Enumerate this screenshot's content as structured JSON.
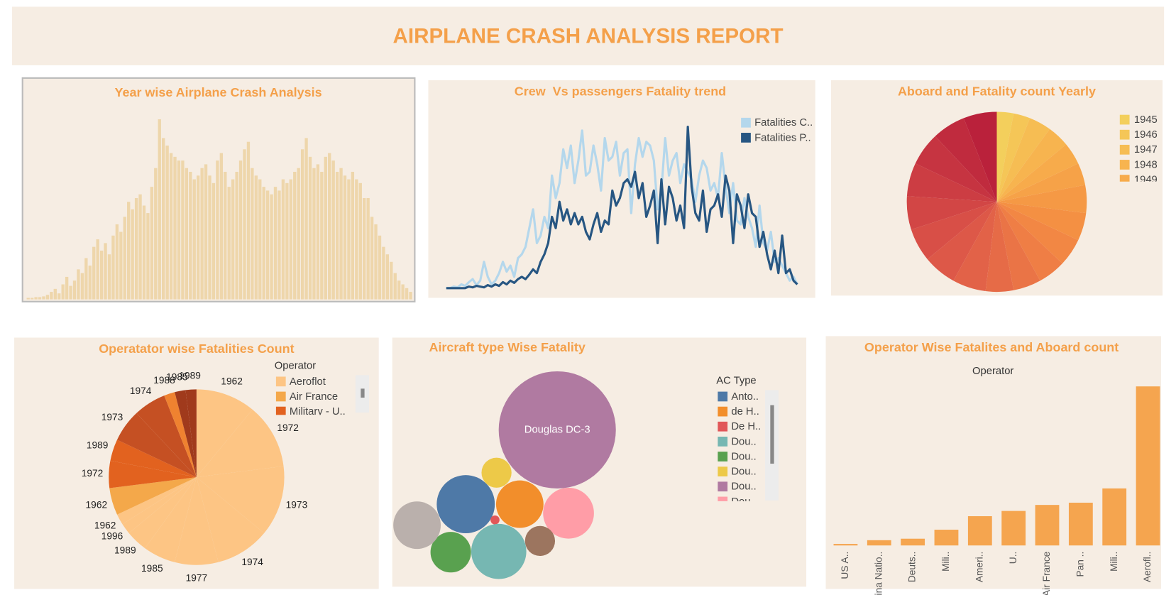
{
  "title": "AIRPLANE CRASH ANALYSIS REPORT",
  "chart_data": [
    {
      "type": "bar",
      "title": "Year wise Airplane Crash Analysis",
      "color": "#eed6ab",
      "values": [
        2,
        2,
        3,
        3,
        4,
        6,
        10,
        14,
        8,
        20,
        30,
        18,
        25,
        40,
        35,
        55,
        45,
        70,
        80,
        65,
        75,
        60,
        85,
        100,
        90,
        110,
        130,
        120,
        135,
        140,
        125,
        115,
        150,
        175,
        240,
        215,
        205,
        195,
        190,
        185,
        185,
        175,
        170,
        160,
        165,
        175,
        180,
        165,
        155,
        185,
        195,
        170,
        150,
        160,
        170,
        185,
        200,
        210,
        175,
        165,
        160,
        150,
        145,
        140,
        150,
        145,
        160,
        155,
        160,
        170,
        175,
        200,
        215,
        190,
        175,
        180,
        170,
        190,
        195,
        185,
        170,
        175,
        165,
        160,
        170,
        160,
        155,
        135,
        135,
        110,
        100,
        85,
        70,
        60,
        50,
        35,
        25,
        20,
        15,
        10
      ]
    },
    {
      "type": "line",
      "title": "Crew  Vs passengers Fatality trend",
      "series": [
        {
          "name": "Fatalities C..",
          "color": "#b4d7ec",
          "values": [
            0,
            0,
            2,
            1,
            5,
            3,
            8,
            12,
            4,
            10,
            35,
            15,
            5,
            10,
            20,
            35,
            22,
            30,
            15,
            40,
            45,
            55,
            80,
            105,
            60,
            70,
            95,
            80,
            150,
            120,
            140,
            185,
            160,
            190,
            140,
            170,
            210,
            150,
            155,
            190,
            165,
            130,
            200,
            170,
            175,
            195,
            150,
            180,
            185,
            100,
            165,
            200,
            175,
            195,
            190,
            170,
            105,
            130,
            200,
            150,
            170,
            180,
            140,
            165,
            155,
            145,
            115,
            150,
            170,
            160,
            130,
            140,
            120,
            180,
            135,
            100,
            140,
            90,
            85,
            120,
            95,
            80,
            55,
            110,
            60,
            50,
            75,
            35,
            40,
            30,
            20,
            10,
            15,
            5
          ]
        },
        {
          "name": "Fatalities P..",
          "color": "#275682",
          "values": [
            0,
            0,
            0,
            0,
            0,
            0,
            2,
            1,
            3,
            2,
            1,
            4,
            2,
            5,
            3,
            8,
            5,
            10,
            7,
            12,
            15,
            12,
            18,
            25,
            20,
            35,
            45,
            60,
            95,
            80,
            115,
            90,
            105,
            85,
            100,
            85,
            95,
            75,
            65,
            85,
            100,
            75,
            90,
            85,
            130,
            110,
            120,
            140,
            145,
            135,
            155,
            120,
            140,
            95,
            110,
            130,
            60,
            145,
            85,
            135,
            120,
            90,
            110,
            80,
            215,
            135,
            100,
            90,
            130,
            75,
            105,
            110,
            125,
            95,
            150,
            130,
            60,
            125,
            110,
            80,
            125,
            100,
            95,
            55,
            75,
            45,
            25,
            50,
            20,
            70,
            20,
            25,
            10,
            5
          ]
        }
      ]
    },
    {
      "type": "pie",
      "title": "Aboard and Fatality count Yearly",
      "categories": [
        "1945",
        "1946",
        "1947",
        "1948",
        "1949",
        null,
        null,
        null,
        null,
        null,
        null,
        null,
        null,
        null,
        null,
        null,
        null,
        null,
        null,
        null
      ],
      "values": [
        3,
        3,
        4,
        4,
        4,
        4,
        5,
        5,
        5,
        5,
        5,
        5,
        6,
        6,
        6,
        6,
        6,
        6,
        6,
        6
      ],
      "colors": [
        "#f3cf5c",
        "#f5c657",
        "#f6bd53",
        "#f7b44f",
        "#f7ab4b",
        "#f6a248",
        "#f59945",
        "#f49043",
        "#f28744",
        "#ef7e45",
        "#ea7446",
        "#e66b47",
        "#e26248",
        "#dd5848",
        "#d84f47",
        "#d24645",
        "#cc3d43",
        "#c63441",
        "#c02b3e",
        "#ba213b"
      ]
    },
    {
      "type": "pie",
      "title": "Operatator wise Fatalities Count",
      "legend_title": "Operator",
      "series": [
        {
          "name": "Aeroflot",
          "color": "#fdc584",
          "categories": [
            "1962",
            "1972",
            "1973",
            "1974",
            "1977",
            "1985",
            "1989",
            "1996",
            "1962"
          ],
          "values": [
            11,
            12,
            13,
            10,
            8,
            6,
            4,
            2,
            2
          ]
        },
        {
          "name": "Air France",
          "color": "#f4a84a",
          "categories": [
            "1962"
          ],
          "values": [
            5
          ]
        },
        {
          "name": "Military - U..",
          "color": "#e2621f",
          "categories": [
            "1972",
            "1989"
          ],
          "values": [
            5,
            4
          ]
        },
        {
          "color": "#c55023",
          "categories": [
            "1973",
            "1974"
          ],
          "values": [
            6,
            6
          ]
        },
        {
          "color": "#ef8230",
          "categories": [
            "1988"
          ],
          "values": [
            2
          ]
        },
        {
          "color": "#a03a1c",
          "categories": [
            "1985",
            "1989"
          ],
          "values": [
            2,
            2
          ]
        }
      ]
    },
    {
      "type": "bubble",
      "title": "Aircraft type Wise Fatality",
      "legend_title": "AC Type",
      "series": [
        {
          "name": "Anto..",
          "color": "#4e79a7",
          "size": 1500
        },
        {
          "name": "de H..",
          "color": "#f28e2b",
          "size": 1000
        },
        {
          "name": "De H..",
          "color": "#e15759",
          "size": 36
        },
        {
          "name": "Dou..",
          "color": "#76b7b2",
          "size": 1350
        },
        {
          "name": "Dou..",
          "color": "#59a14f",
          "size": 730
        },
        {
          "name": "Dou..",
          "color": "#edc948",
          "size": 400
        },
        {
          "name": "Dou..",
          "color": "#b07aa1",
          "size": 6100,
          "label": "Douglas DC-3"
        },
        {
          "name": "Dou..",
          "color": "#ff9da7",
          "size": 1150
        },
        {
          "color": "#bab0ac",
          "size": 1000
        },
        {
          "color": "#9c755f",
          "size": 400
        }
      ]
    },
    {
      "type": "bar",
      "title": "Operator Wise Fatalites and Aboard count",
      "subtitle": "Operator",
      "color": "#f5a54f",
      "categories": [
        "US A..",
        "China Natio..",
        "Deuts..",
        "Mili..",
        "Ameri..",
        "U..",
        "Air France",
        "Pan ..",
        "Mili..",
        "Aerofl.."
      ],
      "values": [
        2,
        7,
        9,
        21,
        39,
        46,
        54,
        57,
        76,
        212
      ]
    }
  ]
}
